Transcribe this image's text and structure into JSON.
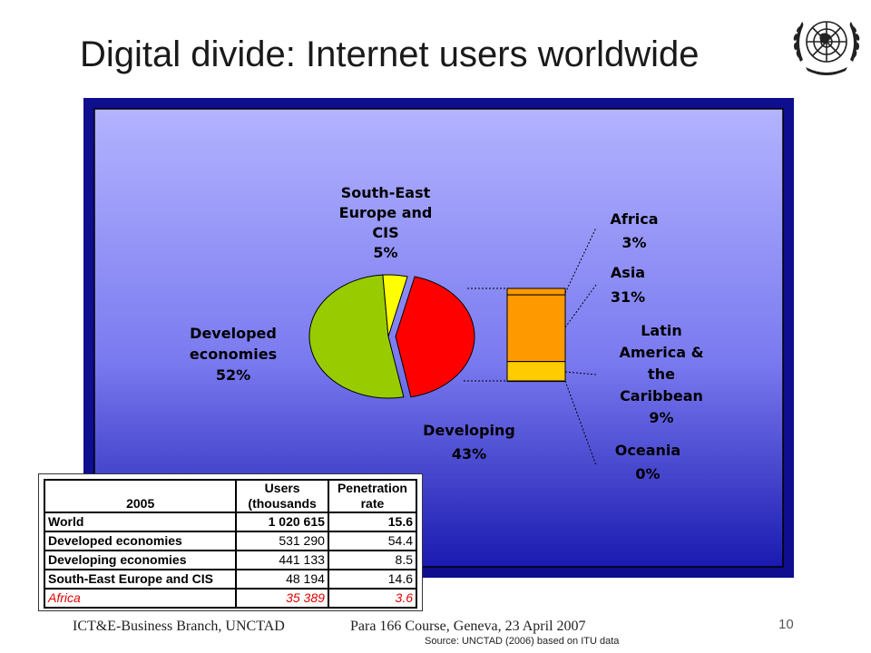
{
  "slide": {
    "title": "Digital divide: Internet users worldwide",
    "footer_left": "ICT&E-Business Branch, UNCTAD",
    "footer_mid": "Para 166 Course, Geneva, 23 April 2007",
    "page_number": "10",
    "source": "Source: UNCTAD  (2006)  based on ITU data"
  },
  "chart_data": {
    "type": "pie",
    "slices": [
      {
        "name": "Developed economies",
        "label_lines": [
          "Developed",
          "economies",
          "52%"
        ],
        "value": 52,
        "color": "#99cc00"
      },
      {
        "name": "South-East Europe and CIS",
        "label_lines": [
          "South-East",
          "Europe and",
          "CIS",
          "5%"
        ],
        "value": 5,
        "color": "#ffff00"
      },
      {
        "name": "Developing",
        "label_lines": [
          "Developing",
          "43%"
        ],
        "value": 43,
        "color": "#ff0000"
      }
    ],
    "breakdown_of": "Developing",
    "breakdown": [
      {
        "name": "Africa",
        "label_lines": [
          "Africa",
          "3%"
        ],
        "value": 3,
        "color": "#ff9900"
      },
      {
        "name": "Asia",
        "label_lines": [
          "Asia",
          "31%"
        ],
        "value": 31,
        "color": "#ff9900"
      },
      {
        "name": "Latin America & the Caribbean",
        "label_lines": [
          "Latin",
          "America &",
          "the",
          "Caribbean",
          "9%"
        ],
        "value": 9,
        "color": "#ffcc00"
      },
      {
        "name": "Oceania",
        "label_lines": [
          "Oceania",
          "0%"
        ],
        "value": 0,
        "color": "#ffcc00"
      }
    ],
    "colors": {
      "panel_border": "#0e0e8e",
      "panel_inner_top": "#b3b3ff",
      "panel_inner_bottom": "#1a1ab0"
    }
  },
  "table": {
    "header": {
      "name": "2005",
      "users": [
        "Users",
        "(thousands"
      ],
      "rate": [
        "Penetration",
        "rate"
      ]
    },
    "rows": [
      {
        "name": "World",
        "users": "1 020 615",
        "rate": "15.6",
        "style": "bold"
      },
      {
        "name": "Developed economies",
        "users": "531 290",
        "rate": "54.4",
        "style": "normal"
      },
      {
        "name": "Developing economies",
        "users": "441 133",
        "rate": "8.5",
        "style": "normal"
      },
      {
        "name": "South-East Europe and CIS",
        "users": "48 194",
        "rate": "14.6",
        "style": "normal"
      },
      {
        "name": "Africa",
        "users": "35 389",
        "rate": "3.6",
        "style": "africa"
      }
    ]
  }
}
